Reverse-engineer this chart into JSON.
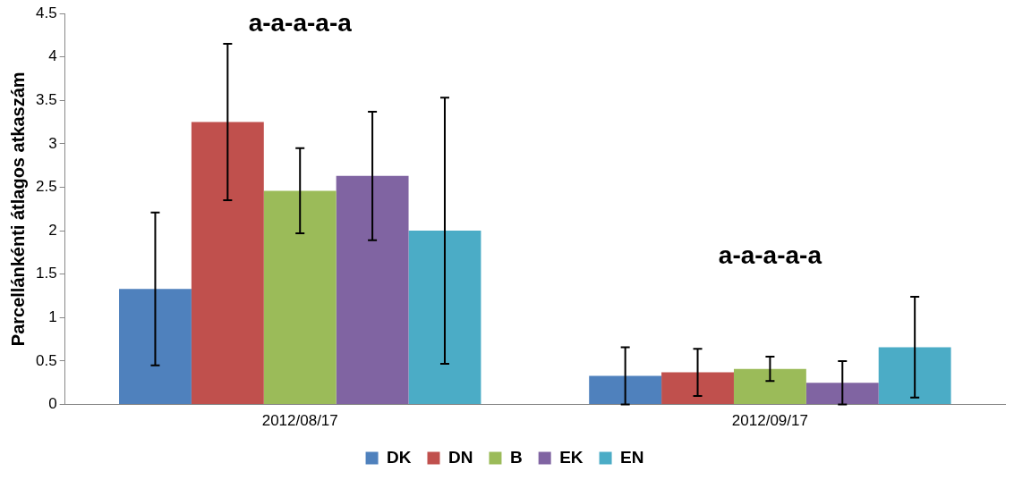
{
  "chart_data": {
    "type": "bar",
    "ylabel": "Parcellánkénti átlagos atkaszám",
    "categories": [
      "2012/08/17",
      "2012/09/17"
    ],
    "series": [
      {
        "name": "DK",
        "color": "#4f81bd",
        "values": [
          1.33,
          0.33
        ],
        "errors": [
          0.88,
          0.33
        ]
      },
      {
        "name": "DN",
        "color": "#c0504d",
        "values": [
          3.25,
          0.37
        ],
        "errors": [
          0.9,
          0.27
        ]
      },
      {
        "name": "B",
        "color": "#9bbb59",
        "values": [
          2.46,
          0.41
        ],
        "errors": [
          0.49,
          0.14
        ]
      },
      {
        "name": "EK",
        "color": "#8064a2",
        "values": [
          2.63,
          0.25
        ],
        "errors": [
          0.74,
          0.25
        ]
      },
      {
        "name": "EN",
        "color": "#4bacc6",
        "values": [
          2.0,
          0.66
        ],
        "errors": [
          1.53,
          0.58
        ]
      }
    ],
    "ylim": [
      0,
      4.5
    ],
    "yticks": [
      0,
      0.5,
      1,
      1.5,
      2,
      2.5,
      3,
      3.5,
      4,
      4.5
    ],
    "annotations": [
      "a-a-a-a-a",
      "a-a-a-a-a"
    ],
    "grid": false,
    "legend": "bottom"
  }
}
